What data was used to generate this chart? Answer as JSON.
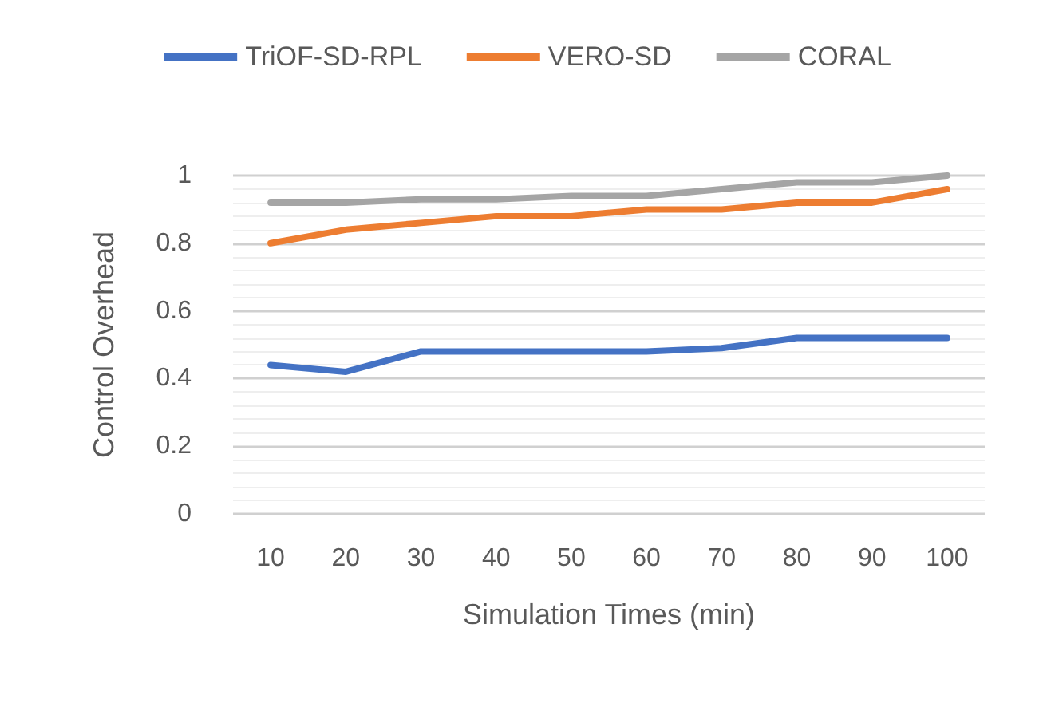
{
  "chart_data": {
    "type": "line",
    "xlabel": "Simulation Times (min)",
    "ylabel": "Control Overhead",
    "categories": [
      "10",
      "20",
      "30",
      "40",
      "50",
      "60",
      "70",
      "80",
      "90",
      "100"
    ],
    "series": [
      {
        "name": "TriOF-SD-RPL",
        "color": "#4472c4",
        "values": [
          0.44,
          0.42,
          0.48,
          0.48,
          0.48,
          0.48,
          0.49,
          0.52,
          0.52,
          0.52
        ]
      },
      {
        "name": "VERO-SD",
        "color": "#ed7d31",
        "values": [
          0.8,
          0.84,
          0.86,
          0.88,
          0.88,
          0.9,
          0.9,
          0.92,
          0.92,
          0.96
        ]
      },
      {
        "name": "CORAL",
        "color": "#a5a5a5",
        "values": [
          0.92,
          0.92,
          0.93,
          0.93,
          0.94,
          0.94,
          0.96,
          0.98,
          0.98,
          1.0
        ]
      }
    ],
    "ylim": [
      0,
      1
    ],
    "yticks": [
      0,
      0.2,
      0.4,
      0.6,
      0.8,
      1
    ],
    "grid": "y",
    "legend": "top",
    "marker": "none",
    "line_style": "solid"
  }
}
